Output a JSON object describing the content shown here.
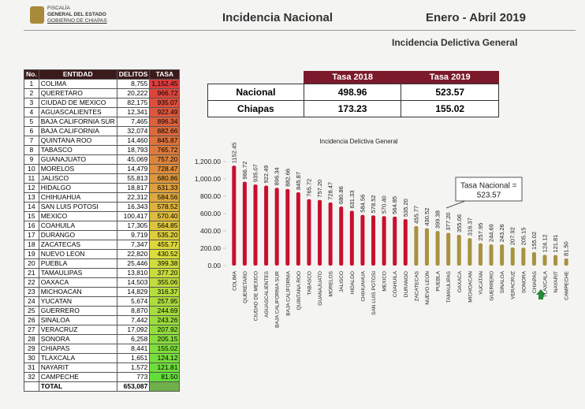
{
  "header": {
    "org_line1": "FISCALÍA",
    "org_line2": "GENERAL DEL ESTADO",
    "org_line3": "GOBIERNO DE CHIAPAS",
    "title": "Incidencia Nacional",
    "period": "Enero - Abril 2019",
    "subtitle": "Incidencia Delictiva General"
  },
  "ranking": {
    "columns": [
      "No.",
      "ENTIDAD",
      "DELITOS",
      "TASA"
    ],
    "rows": [
      [
        "1",
        "COLIMA",
        "8,755",
        "1,152.45"
      ],
      [
        "2",
        "QUERETARO",
        "20,222",
        "966.72"
      ],
      [
        "3",
        "CIUDAD DE MEXICO",
        "82,175",
        "935.07"
      ],
      [
        "4",
        "AGUASCALIENTES",
        "12,341",
        "922.49"
      ],
      [
        "5",
        "BAJA CALIFORNIA SUR",
        "7,465",
        "896.34"
      ],
      [
        "6",
        "BAJA CALIFORNIA",
        "32,074",
        "882.66"
      ],
      [
        "7",
        "QUINTANA ROO",
        "14,460",
        "845.87"
      ],
      [
        "8",
        "TABASCO",
        "18,793",
        "765.72"
      ],
      [
        "9",
        "GUANAJUATO",
        "45,069",
        "757.20"
      ],
      [
        "10",
        "MORELOS",
        "14,479",
        "728.47"
      ],
      [
        "11",
        "JALISCO",
        "55,813",
        "680.86"
      ],
      [
        "12",
        "HIDALGO",
        "18,817",
        "631.33"
      ],
      [
        "13",
        "CHIHUAHUA",
        "22,312",
        "584.56"
      ],
      [
        "14",
        "SAN LUIS POTOSI",
        "16,343",
        "578.52"
      ],
      [
        "15",
        "MEXICO",
        "100,417",
        "570.40"
      ],
      [
        "16",
        "COAHUILA",
        "17,305",
        "564.85"
      ],
      [
        "17",
        "DURANGO",
        "9,719",
        "535.20"
      ],
      [
        "18",
        "ZACATECAS",
        "7,347",
        "455.77"
      ],
      [
        "19",
        "NUEVO LEON",
        "22,820",
        "430.52"
      ],
      [
        "20",
        "PUEBLA",
        "25,446",
        "399.38"
      ],
      [
        "21",
        "TAMAULIPAS",
        "13,810",
        "377.20"
      ],
      [
        "22",
        "OAXACA",
        "14,503",
        "355.06"
      ],
      [
        "23",
        "MICHOACAN",
        "14,829",
        "316.37"
      ],
      [
        "24",
        "YUCATAN",
        "5,674",
        "257.95"
      ],
      [
        "25",
        "GUERRERO",
        "8,870",
        "244.69"
      ],
      [
        "26",
        "SINALOA",
        "7,442",
        "243.26"
      ],
      [
        "27",
        "VERACRUZ",
        "17,092",
        "207.92"
      ],
      [
        "28",
        "SONORA",
        "6,258",
        "205.15"
      ],
      [
        "29",
        "CHIAPAS",
        "8,441",
        "155.02"
      ],
      [
        "30",
        "TLAXCALA",
        "1,651",
        "124.12"
      ],
      [
        "31",
        "NAYARIT",
        "1,572",
        "121.81"
      ],
      [
        "32",
        "CAMPECHE",
        "773",
        "81.50"
      ]
    ],
    "total_label": "TOTAL",
    "total": "653,087"
  },
  "summary": {
    "columns": [
      "Tasa 2018",
      "Tasa 2019"
    ],
    "rows": [
      [
        "Nacional",
        "498.96",
        "523.57"
      ],
      [
        "Chiapas",
        "173.23",
        "155.02"
      ]
    ]
  },
  "chart_data": {
    "type": "bar",
    "title": "Incidencia Delictiva General",
    "categories": [
      "COLIMA",
      "QUERETARO",
      "CIUDAD DE MEXICO",
      "AGUASCALIENTES",
      "BAJA CALIFORNIA SUR",
      "BAJA CALIFORNIA",
      "QUINTANA ROO",
      "TABASCO",
      "GUANAJUATO",
      "MORELOS",
      "JALISCO",
      "HIDALGO",
      "CHIHUAHUA",
      "SAN LUIS POTOSI",
      "MEXICO",
      "COAHUILA",
      "DURANGO",
      "ZACATECAS",
      "NUEVO LEON",
      "PUEBLA",
      "TAMAULIPAS",
      "OAXACA",
      "MICHOACAN",
      "YUCATAN",
      "GUERRERO",
      "SINALOA",
      "VERACRUZ",
      "SONORA",
      "CHIAPAS",
      "TLAXCALA",
      "NAYARIT",
      "CAMPECHE"
    ],
    "values": [
      1152.45,
      966.72,
      935.07,
      922.49,
      896.34,
      882.66,
      845.87,
      765.72,
      757.2,
      728.47,
      680.86,
      631.33,
      584.56,
      578.52,
      570.4,
      564.85,
      535.2,
      455.77,
      430.52,
      399.38,
      377.2,
      355.06,
      316.37,
      257.95,
      244.69,
      243.26,
      207.92,
      205.15,
      155.02,
      124.12,
      121.81,
      81.5
    ],
    "value_labels": [
      "1152.45",
      "966.72",
      "935.07",
      "922.49",
      "896.34",
      "882.66",
      "845.87",
      "765.72",
      "757.20",
      "728.47",
      "680.86",
      "631.33",
      "584.56",
      "578.52",
      "570.40",
      "564.85",
      "535.20",
      "455.77",
      "430.52",
      "399.38",
      "377.20",
      "355.06",
      "316.37",
      "257.95",
      "244.69",
      "243.26",
      "207.92",
      "205.15",
      "155.02",
      "124.12",
      "121.81",
      "81.50"
    ],
    "colors": [
      "#c8102e",
      "#c8102e",
      "#c8102e",
      "#c8102e",
      "#c8102e",
      "#c8102e",
      "#c8102e",
      "#c8102e",
      "#c8102e",
      "#c8102e",
      "#c8102e",
      "#c8102e",
      "#c8102e",
      "#c8102e",
      "#c8102e",
      "#c8102e",
      "#c8102e",
      "#a8923f",
      "#a8923f",
      "#a8923f",
      "#a8923f",
      "#a8923f",
      "#a8923f",
      "#a8923f",
      "#a8923f",
      "#a8923f",
      "#a8923f",
      "#a8923f",
      "#a8923f",
      "#a8923f",
      "#a8923f",
      "#a8923f"
    ],
    "ylim": [
      0,
      1200
    ],
    "yticks": [
      {
        "value": 0,
        "label": "0.00"
      },
      {
        "value": 200,
        "label": "200.00"
      },
      {
        "value": 400,
        "label": "400.00"
      },
      {
        "value": 600,
        "label": "600.00"
      },
      {
        "value": 800,
        "label": "800.00"
      },
      {
        "value": 1000,
        "label": "1,000.00"
      },
      {
        "value": 1200,
        "label": "1,200.00"
      }
    ],
    "grid": false,
    "annotation": {
      "text": "Tasa Nacional =",
      "value": "523.57"
    }
  }
}
